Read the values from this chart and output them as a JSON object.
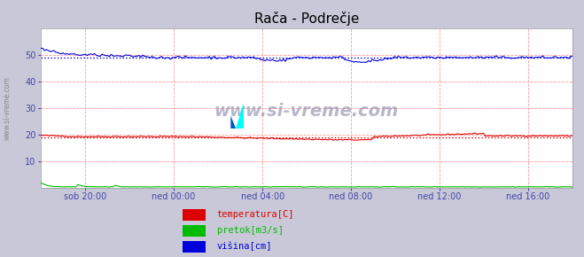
{
  "title": "Rača - Podrečje",
  "title_fontsize": 11,
  "bg_color": "#c8c8d8",
  "plot_bg_color": "#ffffff",
  "legend_bg_color": "#e8e8f0",
  "ylim": [
    0,
    60
  ],
  "yticks": [
    10,
    20,
    30,
    40,
    50
  ],
  "xlabel_ticks": [
    "sob 20:00",
    "ned 00:00",
    "ned 04:00",
    "ned 08:00",
    "ned 12:00",
    "ned 16:00"
  ],
  "xlabel_positions_frac": [
    0.083,
    0.25,
    0.417,
    0.583,
    0.75,
    0.917
  ],
  "n_xticks": 6,
  "grid_color": "#ff9999",
  "temp_color": "#dd0000",
  "temp_avg": 19.0,
  "pretok_color": "#00bb00",
  "visina_color": "#0000dd",
  "visina_avg": 49.0,
  "watermark": "www.si-vreme.com",
  "legend_labels": [
    "temperatura[C]",
    "pretok[m3/s]",
    "višina[cm]"
  ],
  "legend_colors": [
    "#dd0000",
    "#00bb00",
    "#0000dd"
  ],
  "sidebar_text": "www.si-vreme.com",
  "n_points": 288,
  "tick_fontsize": 7,
  "tick_color": "#4444aa"
}
